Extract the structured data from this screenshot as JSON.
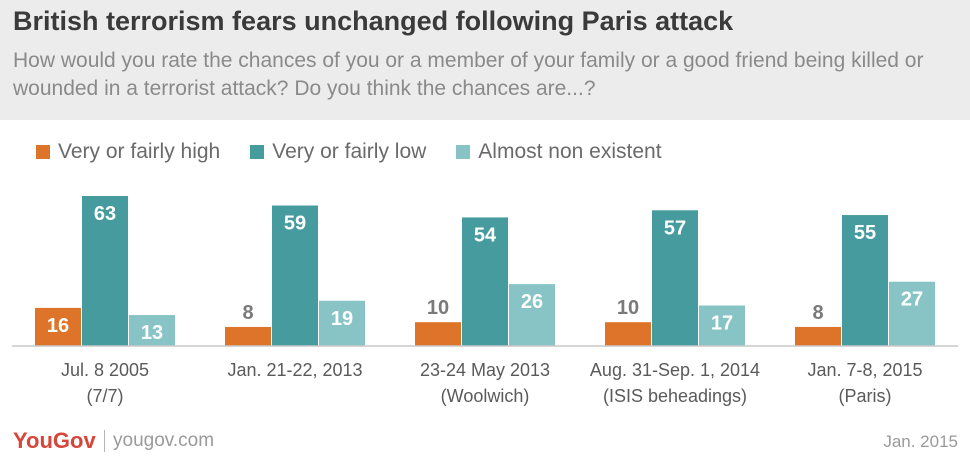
{
  "chart_data": {
    "type": "bar",
    "title": "British terrorism fears unchanged following Paris attack",
    "subtitle": "How would you rate the chances of you or a member of your family or a good friend being killed or wounded in a terrorist attack? Do you think the chances are...?",
    "categories": [
      [
        "Jul. 8 2005",
        "(7/7)"
      ],
      [
        "Jan. 21-22, 2013"
      ],
      [
        "23-24 May 2013",
        "(Woolwich)"
      ],
      [
        "Aug. 31-Sep. 1, 2014",
        "(ISIS beheadings)"
      ],
      [
        "Jan. 7-8, 2015",
        "(Paris)"
      ]
    ],
    "series": [
      {
        "name": "Very or fairly high",
        "values": [
          16,
          8,
          10,
          10,
          8
        ],
        "color": "#dd7429"
      },
      {
        "name": "Very or fairly low",
        "values": [
          63,
          59,
          54,
          57,
          55
        ],
        "color": "#459b9e"
      },
      {
        "name": "Almost non existent",
        "values": [
          13,
          19,
          26,
          17,
          27
        ],
        "color": "#88c4c6"
      }
    ],
    "ylim": [
      0,
      63
    ],
    "grid": false,
    "legend": "top-left",
    "xlabel": "",
    "ylabel": ""
  },
  "footer": {
    "brand": "YouGov",
    "url": "yougov.com",
    "date": "Jan. 2015"
  }
}
